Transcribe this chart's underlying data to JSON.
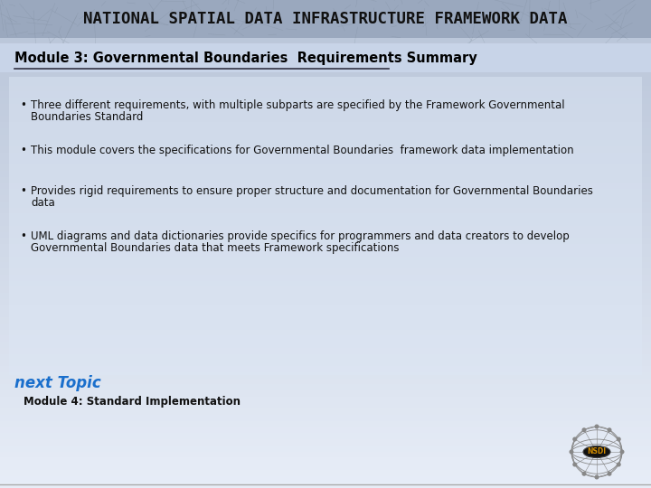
{
  "header_text": "NATIONAL SPATIAL DATA INFRASTRUCTURE FRAMEWORK DATA",
  "section_title": "Module 3: Governmental Boundaries  Requirements Summary",
  "section_title_color": "#000000",
  "section_title_fontsize": 10.5,
  "bullets": [
    "Three different requirements, with multiple subparts are specified by the Framework Governmental\nBoundaries Standard",
    "This module covers the specifications for Governmental Boundaries  framework data implementation",
    "Provides rigid requirements to ensure proper structure and documentation for Governmental Boundaries\ndata",
    "UML diagrams and data dictionaries provide specifics for programmers and data creators to develop\nGovernmental Boundaries data that meets Framework specifications"
  ],
  "bullet_color": "#111111",
  "bullet_fontsize": 8.5,
  "next_topic_label": "next Topic",
  "next_topic_color": "#1a6fcc",
  "next_topic_fontsize": 12,
  "next_module_text": "Module 4: Standard Implementation",
  "next_module_color": "#111111",
  "next_module_fontsize": 8.5,
  "bullet_marker": "•"
}
